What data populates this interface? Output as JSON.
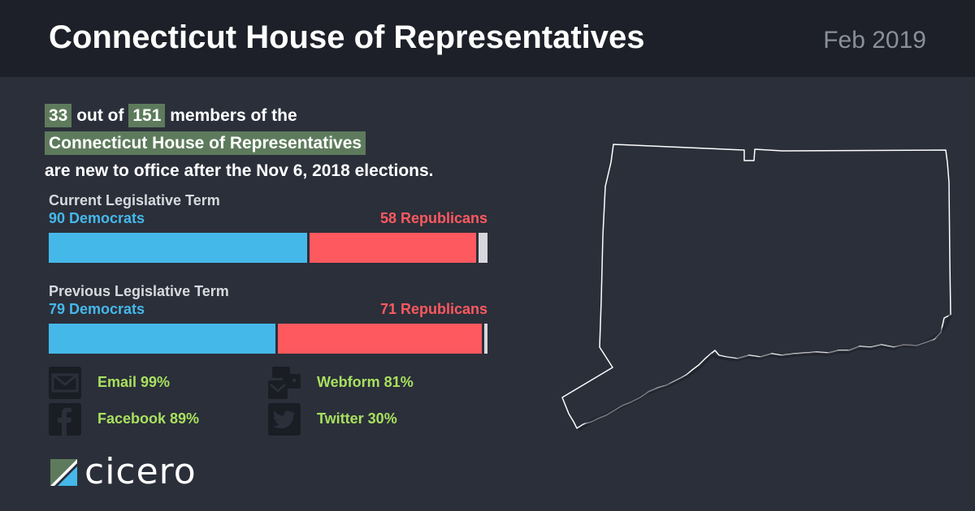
{
  "header": {
    "title": "Connecticut House of Representatives",
    "date": "Feb 2019"
  },
  "summary": {
    "new_count": "33",
    "text_1": "out of",
    "total": "151",
    "text_2": "members of the",
    "body": "Connecticut House of Representatives",
    "text_3": "are new to office after the Nov 6, 2018 elections."
  },
  "current_term": {
    "label": "Current Legislative Term",
    "democrats_label": "90 Democrats",
    "republicans_label": "58 Republicans",
    "democrats": 90,
    "republicans": 58,
    "other": 3,
    "colors": {
      "democrat": "#45b8ea",
      "republican": "#fd595f",
      "other": "#d5d7dc"
    }
  },
  "previous_term": {
    "label": "Previous Legislative Term",
    "democrats_label": "79 Democrats",
    "republicans_label": "71 Republicans",
    "democrats": 79,
    "republicans": 71,
    "other": 1,
    "colors": {
      "democrat": "#45b8ea",
      "republican": "#fd595f",
      "other": "#d5d7dc"
    }
  },
  "contacts": {
    "email": {
      "icon": "envelope-icon",
      "label": "Email 99%"
    },
    "webform": {
      "icon": "webform-icon",
      "label": "Webform 81%"
    },
    "facebook": {
      "icon": "facebook-icon",
      "label": "Facebook 89%"
    },
    "twitter": {
      "icon": "twitter-icon",
      "label": "Twitter 30%"
    }
  },
  "brand": {
    "name": "cicero",
    "accent": "#5d7b5c",
    "contact_color": "#a8e05f"
  },
  "map": {
    "icon": "connecticut-state-outline"
  }
}
